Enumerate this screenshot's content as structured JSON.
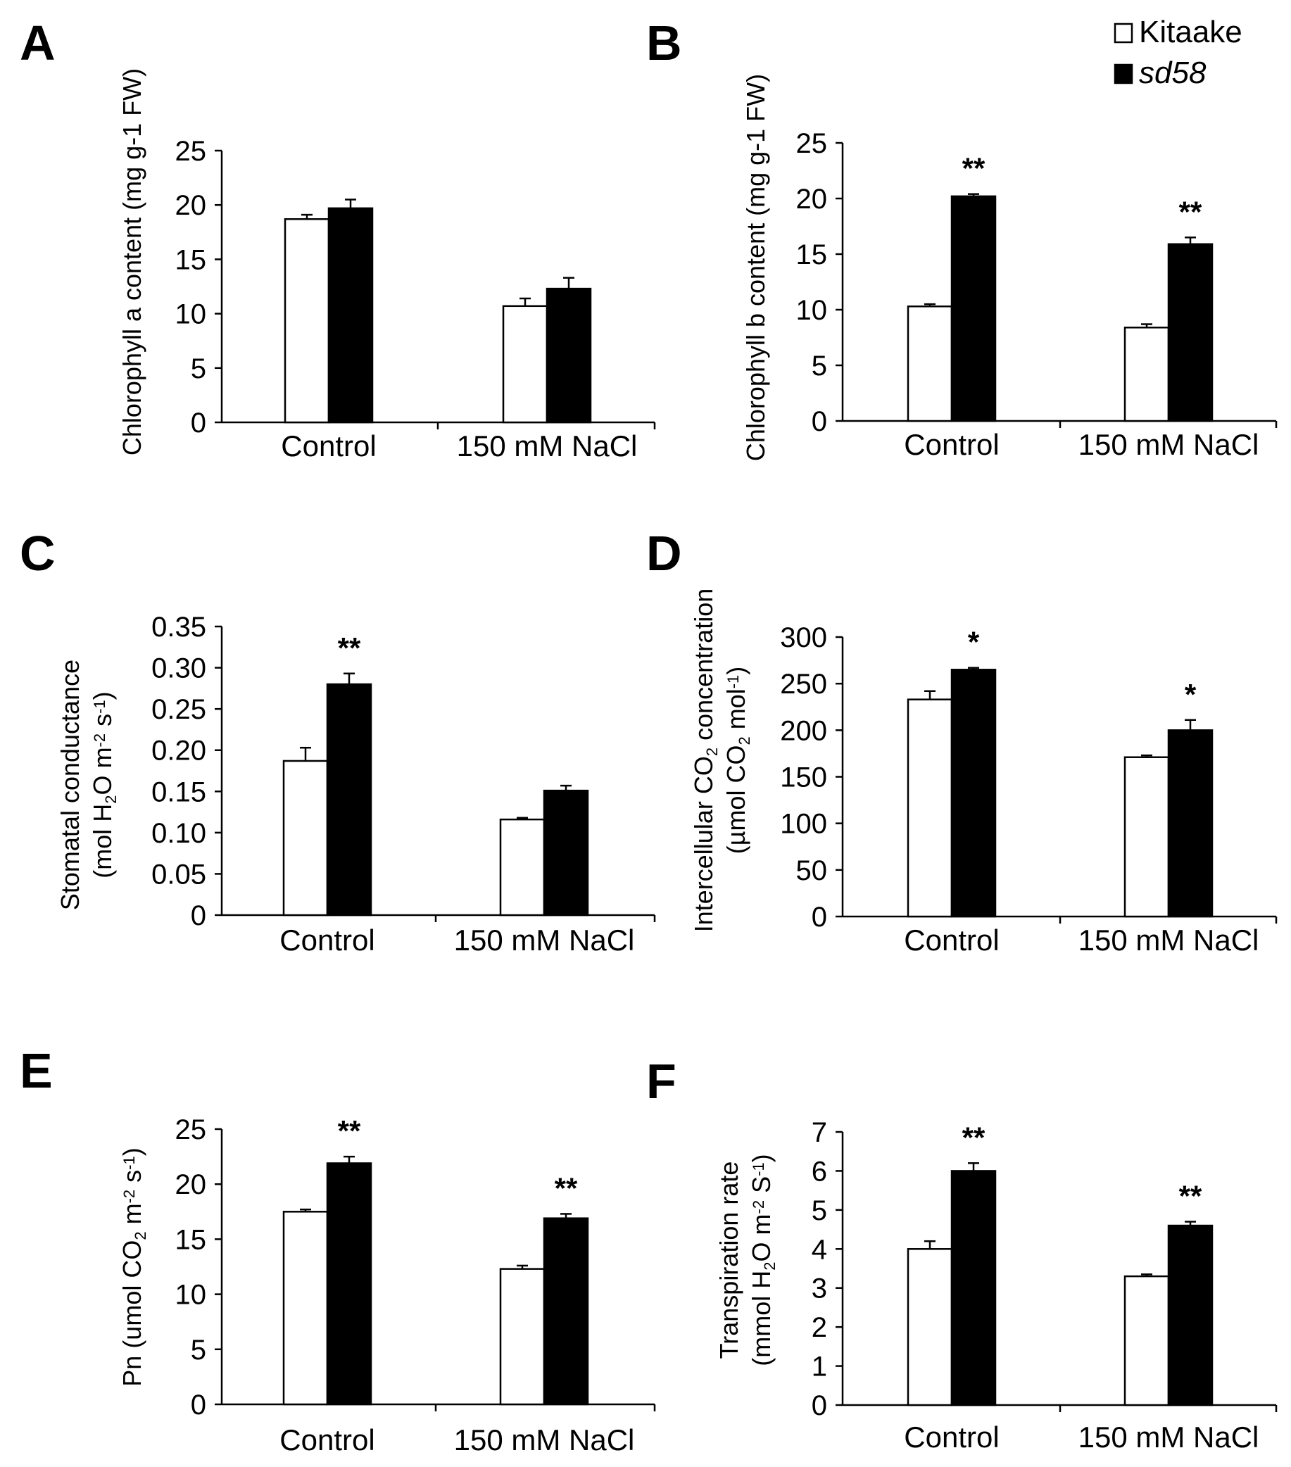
{
  "legend": {
    "items": [
      {
        "label": "Kitaake",
        "color": "#ffffff",
        "italic": false
      },
      {
        "label": "sd58",
        "color": "#000000",
        "italic": true
      }
    ]
  },
  "chart_data": [
    {
      "panel": "A",
      "type": "bar",
      "categories": [
        "Control",
        "150 mM NaCl"
      ],
      "series": [
        {
          "name": "Kitaake",
          "values": [
            18.7,
            10.7
          ],
          "errors": [
            0.4,
            0.7
          ]
        },
        {
          "name": "sd58",
          "values": [
            19.7,
            12.3
          ],
          "errors": [
            0.8,
            1.0
          ]
        }
      ],
      "ylabel_lines": [
        [
          {
            "t": "Chlorophyll a content (mg g-1 FW)",
            "s": ""
          }
        ]
      ],
      "ylim": [
        0,
        25
      ],
      "ticks": [
        "0",
        "5",
        "10",
        "15",
        "20",
        "25"
      ],
      "significance": [
        "",
        ""
      ]
    },
    {
      "panel": "B",
      "type": "bar",
      "categories": [
        "Control",
        "150 mM NaCl"
      ],
      "series": [
        {
          "name": "Kitaake",
          "values": [
            10.3,
            8.4
          ],
          "errors": [
            0.2,
            0.3
          ]
        },
        {
          "name": "sd58",
          "values": [
            20.2,
            15.9
          ],
          "errors": [
            0.2,
            0.6
          ]
        }
      ],
      "ylabel_lines": [
        [
          {
            "t": "Chlorophyll b content (mg g-1 FW)",
            "s": ""
          }
        ]
      ],
      "ylim": [
        0,
        25
      ],
      "ticks": [
        "0",
        "5",
        "10",
        "15",
        "20",
        "25"
      ],
      "significance": [
        "**",
        "**"
      ]
    },
    {
      "panel": "C",
      "type": "bar",
      "categories": [
        "Control",
        "150 mM NaCl"
      ],
      "series": [
        {
          "name": "Kitaake",
          "values": [
            0.187,
            0.116
          ],
          "errors": [
            0.016,
            0.002
          ]
        },
        {
          "name": "sd58",
          "values": [
            0.28,
            0.151
          ],
          "errors": [
            0.013,
            0.006
          ]
        }
      ],
      "ylabel_lines": [
        [
          {
            "t": "Stomatal conductance",
            "s": ""
          }
        ],
        [
          {
            "t": "(mol H",
            "s": ""
          },
          {
            "t": "2",
            "s": "sub"
          },
          {
            "t": "O m",
            "s": ""
          },
          {
            "t": "-2",
            "s": "sup"
          },
          {
            "t": " s",
            "s": ""
          },
          {
            "t": "-1",
            "s": "sup"
          },
          {
            "t": ")",
            "s": ""
          }
        ]
      ],
      "ylim": [
        0,
        0.35
      ],
      "ticks": [
        "0",
        "0.05",
        "0.10",
        "0.15",
        "0.20",
        "0.25",
        "0.30",
        "0.35"
      ],
      "significance": [
        "**",
        ""
      ]
    },
    {
      "panel": "D",
      "type": "bar",
      "categories": [
        "Control",
        "150 mM NaCl"
      ],
      "series": [
        {
          "name": "Kitaake",
          "values": [
            233,
            171
          ],
          "errors": [
            9,
            2
          ]
        },
        {
          "name": "sd58",
          "values": [
            265,
            200
          ],
          "errors": [
            2,
            11
          ]
        }
      ],
      "ylabel_lines": [
        [
          {
            "t": "Intercellular CO",
            "s": ""
          },
          {
            "t": "2",
            "s": "sub"
          },
          {
            "t": " concentration",
            "s": ""
          }
        ],
        [
          {
            "t": "(µmol CO",
            "s": ""
          },
          {
            "t": "2",
            "s": "sub"
          },
          {
            "t": " mol",
            "s": ""
          },
          {
            "t": "-1",
            "s": "sup"
          },
          {
            "t": ")",
            "s": ""
          }
        ]
      ],
      "ylim": [
        0,
        300
      ],
      "ticks": [
        "0",
        "50",
        "100",
        "150",
        "200",
        "250",
        "300"
      ],
      "significance": [
        "*",
        "*"
      ]
    },
    {
      "panel": "E",
      "type": "bar",
      "categories": [
        "Control",
        "150 mM NaCl"
      ],
      "series": [
        {
          "name": "Kitaake",
          "values": [
            17.5,
            12.3
          ],
          "errors": [
            0.2,
            0.3
          ]
        },
        {
          "name": "sd58",
          "values": [
            21.9,
            16.9
          ],
          "errors": [
            0.6,
            0.4
          ]
        }
      ],
      "ylabel_lines": [
        [
          {
            "t": "Pn (umol CO",
            "s": ""
          },
          {
            "t": "2",
            "s": "sub"
          },
          {
            "t": " m",
            "s": ""
          },
          {
            "t": "-2",
            "s": "sup"
          },
          {
            "t": " s",
            "s": ""
          },
          {
            "t": "-1",
            "s": "sup"
          },
          {
            "t": ")",
            "s": ""
          }
        ]
      ],
      "ylim": [
        0,
        25
      ],
      "ticks": [
        "0",
        "5",
        "10",
        "15",
        "20",
        "25"
      ],
      "significance": [
        "**",
        "**"
      ]
    },
    {
      "panel": "F",
      "type": "bar",
      "categories": [
        "Control",
        "150 mM NaCl"
      ],
      "series": [
        {
          "name": "Kitaake",
          "values": [
            4.0,
            3.3
          ],
          "errors": [
            0.2,
            0.05
          ]
        },
        {
          "name": "sd58",
          "values": [
            6.0,
            4.6
          ],
          "errors": [
            0.2,
            0.1
          ]
        }
      ],
      "ylabel_lines": [
        [
          {
            "t": "Transpiration rate",
            "s": ""
          }
        ],
        [
          {
            "t": "(mmol H",
            "s": ""
          },
          {
            "t": "2",
            "s": "sub"
          },
          {
            "t": "O m",
            "s": ""
          },
          {
            "t": "-2",
            "s": "sup"
          },
          {
            "t": " S",
            "s": ""
          },
          {
            "t": "-1",
            "s": "sup"
          },
          {
            "t": ")",
            "s": ""
          }
        ]
      ],
      "ylim": [
        0,
        7
      ],
      "ticks": [
        "0",
        "1",
        "2",
        "3",
        "4",
        "5",
        "6",
        "7"
      ],
      "significance": [
        "**",
        "**"
      ]
    }
  ]
}
